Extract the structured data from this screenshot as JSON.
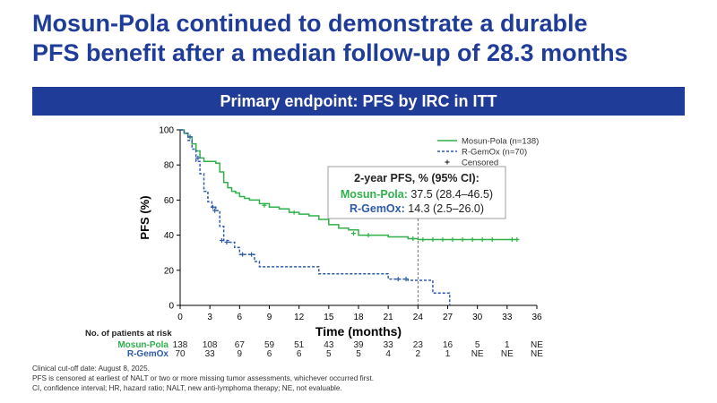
{
  "title": {
    "line1": "Mosun-Pola continued to demonstrate a durable",
    "line2": "PFS benefit after a median follow-up of 28.3 months"
  },
  "banner": "Primary endpoint: PFS by IRC in ITT",
  "colors": {
    "brand": "#1f3c99",
    "mosun": "#2fb04a",
    "rgemox": "#2e5aa8"
  },
  "stats_box": {
    "heading": "2-year PFS, % (95% CI):",
    "rows": [
      {
        "label": "Mosun-Pola:",
        "value": " 37.5 (28.4–46.5)"
      },
      {
        "label": "R-GemOx:",
        "value": " 14.3 (2.5–26.0)"
      }
    ]
  },
  "risk_table": {
    "heading": "No. of patients at risk",
    "rows": [
      {
        "label": "Mosun-Pola",
        "values": [
          "138",
          "108",
          "67",
          "59",
          "51",
          "43",
          "39",
          "33",
          "23",
          "16",
          "5",
          "1",
          "NE"
        ]
      },
      {
        "label": "R-GemOx",
        "values": [
          "70",
          "33",
          "9",
          "6",
          "6",
          "5",
          "5",
          "4",
          "2",
          "1",
          "NE",
          "NE",
          "NE"
        ]
      }
    ]
  },
  "footnotes": [
    "Clinical cut-off date: August 8, 2025.",
    "PFS is censored at earliest of NALT or two or more missing tumor assessments, whichever occurred first.",
    "CI, confidence interval; HR, hazard ratio; NALT, new anti-lymphoma therapy; NE, not evaluable."
  ],
  "chart_data": {
    "type": "line",
    "xlabel": "Time (months)",
    "ylabel": "PFS (%)",
    "xlim": [
      0,
      36
    ],
    "ylim": [
      0,
      100
    ],
    "xticks": [
      0,
      3,
      6,
      9,
      12,
      15,
      18,
      21,
      24,
      27,
      30,
      33,
      36
    ],
    "yticks": [
      0,
      20,
      40,
      60,
      80,
      100
    ],
    "reference_x": 24,
    "legend": {
      "position": "top-right",
      "entries": [
        "Mosun-Pola (n=138)",
        "R-GemOx (n=70)",
        "Censored"
      ]
    },
    "series": [
      {
        "name": "Mosun-Pola (n=138)",
        "style": "solid",
        "x": [
          0,
          0.4,
          0.8,
          1.2,
          1.6,
          2.0,
          2.4,
          2.8,
          3.2,
          3.6,
          4.0,
          4.4,
          4.8,
          5.2,
          5.6,
          6.0,
          6.5,
          7.0,
          8.0,
          9.0,
          10,
          11,
          12,
          13,
          14,
          15,
          16,
          17,
          18,
          19,
          20,
          21,
          22,
          23,
          24,
          26,
          28,
          30,
          32,
          34
        ],
        "y": [
          100,
          98,
          96,
          92,
          88,
          84,
          82,
          82,
          82,
          81,
          76,
          70,
          67,
          65,
          64,
          62,
          61,
          60,
          58,
          56,
          55,
          53,
          52,
          51,
          49,
          46,
          44,
          43,
          40,
          40,
          40,
          39,
          39,
          38,
          37.5,
          37.5,
          37.5,
          37.5,
          37.5,
          37.5
        ]
      },
      {
        "name": "R-GemOx (n=70)",
        "style": "dashed",
        "x": [
          0,
          0.4,
          0.8,
          1.2,
          1.6,
          2.0,
          2.4,
          2.8,
          3.2,
          3.6,
          4.0,
          4.4,
          5.0,
          5.5,
          6.0,
          7.0,
          7.5,
          8.0,
          10,
          12,
          13,
          14,
          16,
          18,
          20,
          21,
          22,
          23,
          24,
          25,
          25.5,
          26,
          27,
          27.2
        ],
        "y": [
          100,
          98,
          94,
          89,
          82,
          75,
          65,
          59,
          56,
          54,
          45,
          37,
          36,
          33,
          29,
          29,
          25,
          22,
          22,
          22,
          22,
          18,
          18,
          18,
          18,
          15,
          15,
          14.3,
          14.3,
          14.3,
          7,
          7,
          7,
          0
        ]
      }
    ],
    "censored": {
      "Mosun-Pola (n=138)": [
        [
          8.5,
          57
        ],
        [
          11.5,
          53
        ],
        [
          17.5,
          41
        ],
        [
          19,
          40
        ],
        [
          23.5,
          38
        ],
        [
          24.5,
          37.5
        ],
        [
          25.5,
          37.5
        ],
        [
          26.5,
          37.5
        ],
        [
          27.5,
          37.5
        ],
        [
          28.5,
          37.5
        ],
        [
          29.5,
          37.5
        ],
        [
          30.5,
          37.5
        ],
        [
          31.5,
          37.5
        ],
        [
          33.5,
          37.5
        ],
        [
          34,
          37.5
        ]
      ],
      "R-GemOx (n=70)": [
        [
          1,
          96
        ],
        [
          1.8,
          84
        ],
        [
          3.3,
          56
        ],
        [
          3.5,
          54
        ],
        [
          4.2,
          37
        ],
        [
          4.7,
          36
        ],
        [
          6.3,
          29
        ],
        [
          7.2,
          29
        ],
        [
          22,
          15
        ],
        [
          22.8,
          15
        ]
      ]
    }
  }
}
